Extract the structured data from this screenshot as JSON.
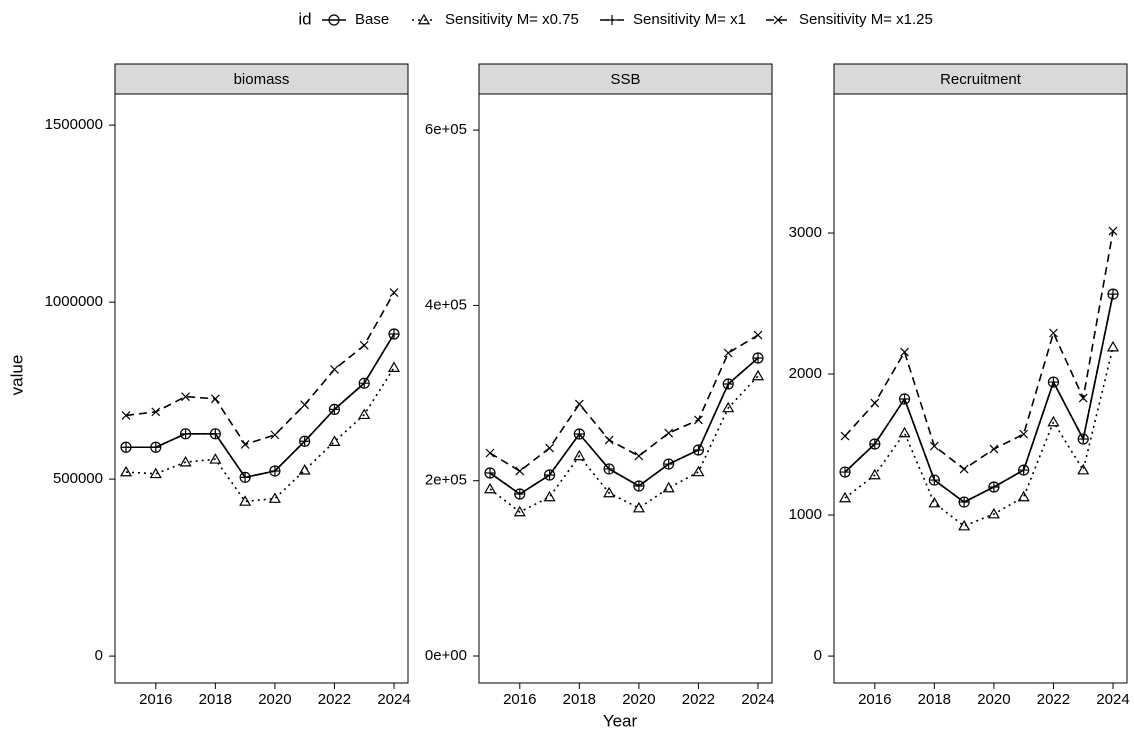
{
  "chart_data": {
    "type": "line",
    "legend_title": "id",
    "legend": "top",
    "xlabel": "Year",
    "ylabel": "value",
    "x": [
      2015,
      2016,
      2017,
      2018,
      2019,
      2020,
      2021,
      2022,
      2023,
      2024
    ],
    "xlim": [
      2014.63,
      2024.47
    ],
    "xticks": [
      2016,
      2018,
      2020,
      2022,
      2024
    ],
    "series": [
      {
        "name": "Base",
        "color": "#000000",
        "dash": "solid",
        "marker": "circle"
      },
      {
        "name": "Sensitivity M= x0.75",
        "color": "#000000",
        "dash": "dotted",
        "marker": "triangle"
      },
      {
        "name": "Sensitivity M= x1",
        "color": "#000000",
        "dash": "dashdot",
        "marker": "plus"
      },
      {
        "name": "Sensitivity M= x1.25",
        "color": "#000000",
        "dash": "dashed",
        "marker": "x"
      }
    ],
    "panels": [
      {
        "title": "biomass",
        "ylim": [
          -76000,
          1588000
        ],
        "yticks": [
          0,
          500000,
          1000000,
          1500000
        ],
        "values": [
          [
            590000,
            590000,
            628000,
            628000,
            505000,
            523000,
            607000,
            697000,
            771000,
            910000
          ],
          [
            520000,
            515000,
            548000,
            556000,
            437000,
            445000,
            525000,
            606000,
            682000,
            815000
          ],
          [
            590000,
            590000,
            628000,
            628000,
            505000,
            523000,
            607000,
            697000,
            771000,
            910000
          ],
          [
            680000,
            690000,
            733000,
            727000,
            598000,
            625000,
            710000,
            810000,
            878000,
            1027000
          ]
        ]
      },
      {
        "title": "SSB",
        "ylim": [
          -30800,
          641200
        ],
        "yticks": [
          {
            "value": 0,
            "label": "0e+00"
          },
          {
            "value": 200000,
            "label": "2e+05"
          },
          {
            "value": 400000,
            "label": "4e+05"
          },
          {
            "value": 600000,
            "label": "6e+05"
          }
        ],
        "values": [
          [
            208800,
            184800,
            206500,
            253300,
            213400,
            194000,
            219000,
            235000,
            310300,
            340000
          ],
          [
            190500,
            164300,
            181400,
            228200,
            186000,
            168800,
            191700,
            210000,
            283000,
            319500
          ],
          [
            208800,
            184800,
            206500,
            253300,
            213400,
            194000,
            219000,
            235000,
            310300,
            340000
          ],
          [
            231600,
            211000,
            237300,
            287500,
            246400,
            228200,
            254400,
            269300,
            345700,
            366200
          ]
        ]
      },
      {
        "title": "Recruitment",
        "ylim": [
          -191,
          3986
        ],
        "yticks": [
          0,
          1000,
          2000,
          3000
        ],
        "values": [
          [
            1305,
            1504,
            1823,
            1248,
            1092,
            1199,
            1319,
            1943,
            1539,
            2567
          ],
          [
            1121,
            1284,
            1582,
            1085,
            922,
            1007,
            1128,
            1660,
            1319,
            2191
          ],
          [
            1305,
            1504,
            1823,
            1248,
            1092,
            1199,
            1319,
            1943,
            1539,
            2567
          ],
          [
            1560,
            1794,
            2156,
            1489,
            1326,
            1468,
            1574,
            2291,
            1830,
            3014
          ]
        ]
      }
    ]
  }
}
